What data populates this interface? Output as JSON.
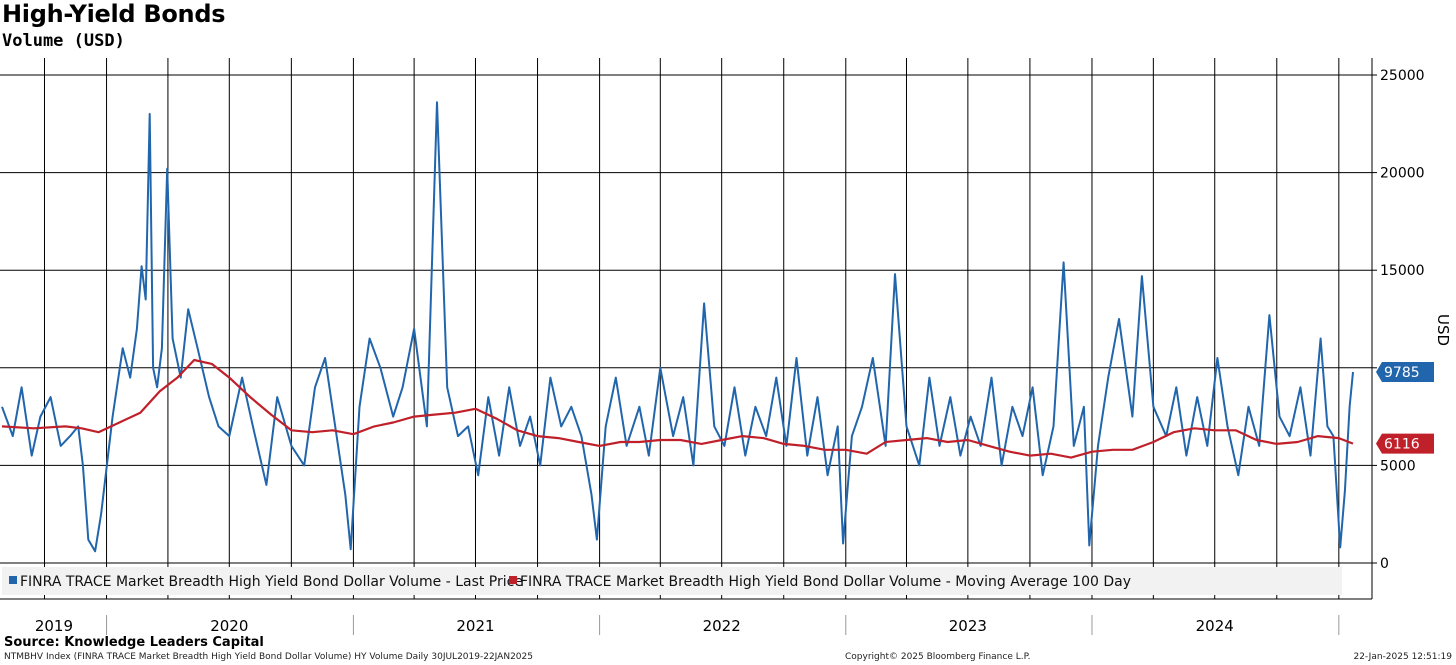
{
  "header": {
    "title": "High-Yield Bonds",
    "subtitle": "Volume (USD)"
  },
  "footer": {
    "source": "Source: Knowledge Leaders Capital",
    "index_line": "NTMBHV Index (FINRA TRACE Market Breadth High Yield Bond Dollar Volume) HY Volume  Daily 30JUL2019-22JAN2025",
    "copyright": "Copyright© 2025 Bloomberg Finance L.P.",
    "timestamp": "22-Jan-2025 12:51:19"
  },
  "colors": {
    "price": "#2166ac",
    "moving_average": "#c0202a",
    "grid": "#000000",
    "legend_bg": "#f2f2f2"
  },
  "chart_data": {
    "type": "line",
    "title": "High-Yield Bonds",
    "subtitle": "Volume (USD)",
    "ylabel": "USD",
    "xlabel": "",
    "ylim": [
      0,
      25000
    ],
    "xlim": [
      "2019-07-30",
      "2025-01-22"
    ],
    "yticks": [
      0,
      5000,
      10000,
      15000,
      20000,
      25000
    ],
    "ytick_labels": [
      "0",
      "5000",
      "",
      "15000",
      "20000",
      "25000"
    ],
    "year_labels": [
      {
        "label": "2019",
        "date": "2019-10-15"
      },
      {
        "label": "2020",
        "date": "2020-07-01"
      },
      {
        "label": "2021",
        "date": "2021-07-01"
      },
      {
        "label": "2022",
        "date": "2022-07-01"
      },
      {
        "label": "2023",
        "date": "2023-07-01"
      },
      {
        "label": "2024",
        "date": "2024-07-01"
      }
    ],
    "grid": true,
    "legend_position": "bottom-left",
    "last_value_badges": [
      {
        "series": "price",
        "value": 9785,
        "label": "9785"
      },
      {
        "series": "moving_average",
        "value": 6116,
        "label": "6116"
      }
    ],
    "series": [
      {
        "name": "FINRA TRACE Market Breadth High Yield Bond Dollar Volume - Last Price",
        "key": "price",
        "x": [
          "2019-07-30",
          "2019-08-15",
          "2019-08-28",
          "2019-09-12",
          "2019-09-25",
          "2019-10-10",
          "2019-10-25",
          "2019-11-08",
          "2019-11-20",
          "2019-11-27",
          "2019-12-05",
          "2019-12-15",
          "2019-12-24",
          "2020-01-10",
          "2020-01-25",
          "2020-02-05",
          "2020-02-15",
          "2020-02-22",
          "2020-02-28",
          "2020-03-05",
          "2020-03-10",
          "2020-03-16",
          "2020-03-23",
          "2020-03-31",
          "2020-04-08",
          "2020-04-20",
          "2020-05-01",
          "2020-05-15",
          "2020-06-01",
          "2020-06-15",
          "2020-07-01",
          "2020-07-20",
          "2020-08-05",
          "2020-08-25",
          "2020-09-10",
          "2020-10-01",
          "2020-10-20",
          "2020-11-05",
          "2020-11-20",
          "2020-12-05",
          "2020-12-20",
          "2020-12-28",
          "2021-01-10",
          "2021-01-25",
          "2021-02-10",
          "2021-03-01",
          "2021-03-15",
          "2021-04-01",
          "2021-04-20",
          "2021-05-05",
          "2021-05-20",
          "2021-06-05",
          "2021-06-20",
          "2021-07-05",
          "2021-07-20",
          "2021-08-05",
          "2021-08-20",
          "2021-09-05",
          "2021-09-20",
          "2021-10-05",
          "2021-10-20",
          "2021-11-05",
          "2021-11-20",
          "2021-12-05",
          "2021-12-20",
          "2021-12-28",
          "2022-01-10",
          "2022-01-25",
          "2022-02-10",
          "2022-03-01",
          "2022-03-15",
          "2022-04-01",
          "2022-04-20",
          "2022-05-05",
          "2022-05-20",
          "2022-06-05",
          "2022-06-20",
          "2022-07-05",
          "2022-07-20",
          "2022-08-05",
          "2022-08-20",
          "2022-09-05",
          "2022-09-20",
          "2022-10-05",
          "2022-10-20",
          "2022-11-05",
          "2022-11-20",
          "2022-12-05",
          "2022-12-20",
          "2022-12-28",
          "2023-01-10",
          "2023-01-25",
          "2023-02-10",
          "2023-03-01",
          "2023-03-15",
          "2023-04-01",
          "2023-04-20",
          "2023-05-05",
          "2023-05-20",
          "2023-06-05",
          "2023-06-20",
          "2023-07-05",
          "2023-07-20",
          "2023-08-05",
          "2023-08-20",
          "2023-09-05",
          "2023-09-20",
          "2023-10-05",
          "2023-10-20",
          "2023-11-05",
          "2023-11-20",
          "2023-12-05",
          "2023-12-20",
          "2023-12-28",
          "2024-01-10",
          "2024-01-25",
          "2024-02-10",
          "2024-03-01",
          "2024-03-15",
          "2024-04-01",
          "2024-04-20",
          "2024-05-05",
          "2024-05-20",
          "2024-06-05",
          "2024-06-20",
          "2024-07-05",
          "2024-07-20",
          "2024-08-05",
          "2024-08-20",
          "2024-09-05",
          "2024-09-20",
          "2024-10-05",
          "2024-10-20",
          "2024-11-05",
          "2024-11-20",
          "2024-12-05",
          "2024-12-15",
          "2024-12-24",
          "2025-01-03",
          "2025-01-10",
          "2025-01-17",
          "2025-01-22"
        ],
        "values": [
          8000,
          6500,
          9000,
          5500,
          7500,
          8500,
          6000,
          6500,
          7000,
          5000,
          1200,
          600,
          2500,
          7500,
          11000,
          9500,
          12000,
          15200,
          13500,
          23000,
          10000,
          9000,
          11000,
          20200,
          11500,
          9500,
          13000,
          11000,
          8500,
          7000,
          6500,
          9500,
          7000,
          4000,
          8500,
          6000,
          5000,
          9000,
          10500,
          7000,
          3500,
          700,
          8000,
          11500,
          10000,
          7500,
          9000,
          12000,
          7000,
          23600,
          9000,
          6500,
          7000,
          4500,
          8500,
          5500,
          9000,
          6000,
          7500,
          5000,
          9500,
          7000,
          8000,
          6500,
          3500,
          1200,
          7000,
          9500,
          6000,
          8000,
          5500,
          10000,
          6500,
          8500,
          5000,
          13300,
          7000,
          6000,
          9000,
          5500,
          8000,
          6500,
          9500,
          6000,
          10500,
          5500,
          8500,
          4500,
          7000,
          1000,
          6500,
          8000,
          10500,
          6000,
          14800,
          7000,
          5000,
          9500,
          6000,
          8500,
          5500,
          7500,
          6000,
          9500,
          5000,
          8000,
          6500,
          9000,
          4500,
          7000,
          15400,
          6000,
          8000,
          900,
          6000,
          9500,
          12500,
          7500,
          14700,
          8000,
          6500,
          9000,
          5500,
          8500,
          6000,
          10500,
          7000,
          4500,
          8000,
          6000,
          12700,
          7500,
          6500,
          9000,
          5500,
          11500,
          7000,
          6500,
          800,
          3700,
          8000,
          9785
        ]
      },
      {
        "name": "FINRA TRACE Market Breadth High Yield Bond Dollar Volume - Moving Average 100 Day",
        "key": "moving_average",
        "x": [
          "2019-07-30",
          "2019-09-15",
          "2019-11-01",
          "2019-11-25",
          "2019-12-20",
          "2020-01-20",
          "2020-02-20",
          "2020-03-20",
          "2020-04-15",
          "2020-05-10",
          "2020-06-05",
          "2020-07-01",
          "2020-08-01",
          "2020-09-01",
          "2020-10-01",
          "2020-11-01",
          "2020-12-01",
          "2021-01-01",
          "2021-02-01",
          "2021-03-01",
          "2021-04-01",
          "2021-05-01",
          "2021-06-01",
          "2021-07-01",
          "2021-08-01",
          "2021-09-01",
          "2021-10-01",
          "2021-11-01",
          "2021-12-01",
          "2022-01-01",
          "2022-02-01",
          "2022-03-01",
          "2022-04-01",
          "2022-05-01",
          "2022-06-01",
          "2022-07-01",
          "2022-08-01",
          "2022-09-01",
          "2022-10-01",
          "2022-11-01",
          "2022-12-01",
          "2023-01-01",
          "2023-02-01",
          "2023-03-01",
          "2023-04-01",
          "2023-05-01",
          "2023-06-01",
          "2023-07-01",
          "2023-08-01",
          "2023-09-01",
          "2023-10-01",
          "2023-11-01",
          "2023-12-01",
          "2024-01-01",
          "2024-02-01",
          "2024-03-01",
          "2024-04-01",
          "2024-05-01",
          "2024-06-01",
          "2024-07-01",
          "2024-08-01",
          "2024-09-01",
          "2024-10-01",
          "2024-11-01",
          "2024-12-01",
          "2025-01-01",
          "2025-01-22"
        ],
        "values": [
          7000,
          6900,
          7000,
          6900,
          6700,
          7200,
          7700,
          8800,
          9500,
          10400,
          10200,
          9500,
          8500,
          7600,
          6800,
          6700,
          6800,
          6600,
          7000,
          7200,
          7500,
          7600,
          7700,
          7900,
          7400,
          6800,
          6500,
          6400,
          6200,
          6000,
          6200,
          6200,
          6300,
          6300,
          6100,
          6300,
          6500,
          6400,
          6100,
          6000,
          5800,
          5800,
          5600,
          6200,
          6300,
          6400,
          6200,
          6300,
          6000,
          5700,
          5500,
          5600,
          5400,
          5700,
          5800,
          5800,
          6200,
          6700,
          6900,
          6800,
          6800,
          6300,
          6100,
          6200,
          6500,
          6400,
          6116
        ]
      }
    ]
  }
}
